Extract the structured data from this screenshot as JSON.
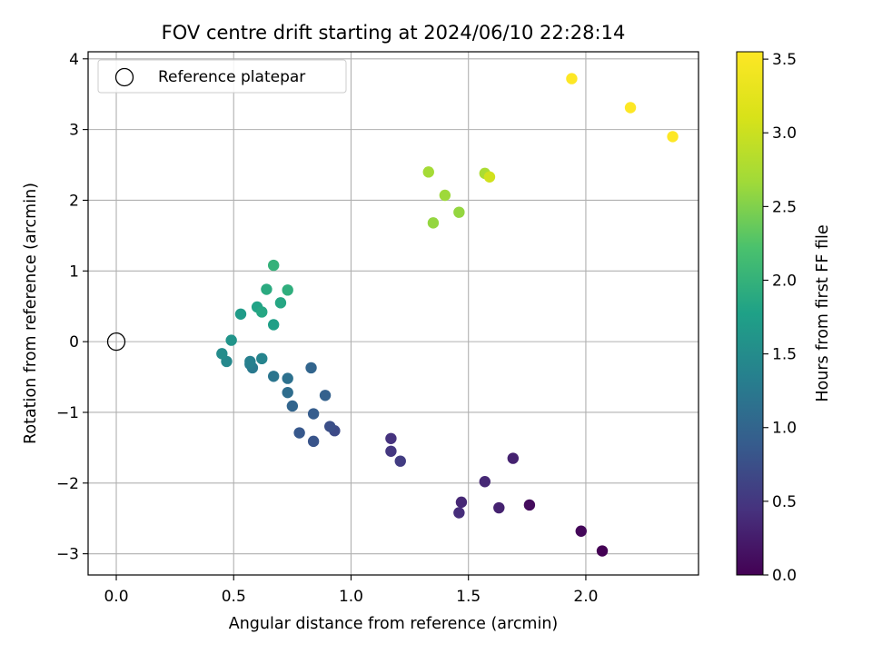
{
  "chart_data": {
    "type": "scatter",
    "title": "FOV centre drift starting at 2024/06/10 22:28:14",
    "xlabel": "Angular distance from reference (arcmin)",
    "ylabel": "Rotation from reference (arcmin)",
    "xlim": [
      -0.12,
      2.48
    ],
    "ylim": [
      -3.3,
      4.1
    ],
    "x_ticks": [
      0.0,
      0.5,
      1.0,
      1.5,
      2.0
    ],
    "x_tick_labels": [
      "0.0",
      "0.5",
      "1.0",
      "1.5",
      "2.0"
    ],
    "y_ticks": [
      -3,
      -2,
      -1,
      0,
      1,
      2,
      3,
      4
    ],
    "y_tick_labels": [
      "−3",
      "−2",
      "−1",
      "0",
      "1",
      "2",
      "3",
      "4"
    ],
    "grid": true,
    "legend": {
      "placement": "top-left",
      "entries": [
        {
          "label": "Reference platepar",
          "marker": "hollow-circle",
          "color": "#000000"
        }
      ]
    },
    "reference_point": {
      "x": 0.0,
      "y": 0.0
    },
    "colorbar": {
      "label": "Hours from first FF file",
      "colormap": "viridis",
      "range": [
        0.0,
        3.55
      ],
      "ticks": [
        0.0,
        0.5,
        1.0,
        1.5,
        2.0,
        2.5,
        3.0,
        3.5
      ],
      "tick_labels": [
        "0.0",
        "0.5",
        "1.0",
        "1.5",
        "2.0",
        "2.5",
        "3.0",
        "3.5"
      ]
    },
    "points": [
      {
        "x": 2.07,
        "y": -2.96,
        "hours": 0.0
      },
      {
        "x": 1.98,
        "y": -2.68,
        "hours": 0.05
      },
      {
        "x": 1.76,
        "y": -2.31,
        "hours": 0.1
      },
      {
        "x": 1.63,
        "y": -2.35,
        "hours": 0.3
      },
      {
        "x": 1.69,
        "y": -1.65,
        "hours": 0.3
      },
      {
        "x": 1.57,
        "y": -1.98,
        "hours": 0.35
      },
      {
        "x": 1.47,
        "y": -2.27,
        "hours": 0.35
      },
      {
        "x": 1.46,
        "y": -2.42,
        "hours": 0.4
      },
      {
        "x": 1.17,
        "y": -1.37,
        "hours": 0.45
      },
      {
        "x": 1.17,
        "y": -1.55,
        "hours": 0.5
      },
      {
        "x": 1.21,
        "y": -1.69,
        "hours": 0.55
      },
      {
        "x": 0.93,
        "y": -1.26,
        "hours": 0.7
      },
      {
        "x": 0.91,
        "y": -1.2,
        "hours": 0.75
      },
      {
        "x": 0.84,
        "y": -1.41,
        "hours": 0.8
      },
      {
        "x": 0.78,
        "y": -1.29,
        "hours": 0.85
      },
      {
        "x": 0.84,
        "y": -1.02,
        "hours": 0.9
      },
      {
        "x": 0.89,
        "y": -0.76,
        "hours": 0.95
      },
      {
        "x": 0.83,
        "y": -0.37,
        "hours": 1.0
      },
      {
        "x": 0.75,
        "y": -0.91,
        "hours": 1.0
      },
      {
        "x": 0.73,
        "y": -0.72,
        "hours": 1.1
      },
      {
        "x": 0.73,
        "y": -0.52,
        "hours": 1.15
      },
      {
        "x": 0.67,
        "y": -0.49,
        "hours": 1.2
      },
      {
        "x": 0.58,
        "y": -0.37,
        "hours": 1.25
      },
      {
        "x": 0.57,
        "y": -0.32,
        "hours": 1.3
      },
      {
        "x": 0.57,
        "y": -0.28,
        "hours": 1.35
      },
      {
        "x": 0.62,
        "y": -0.24,
        "hours": 1.4
      },
      {
        "x": 0.47,
        "y": -0.28,
        "hours": 1.45
      },
      {
        "x": 0.45,
        "y": -0.17,
        "hours": 1.5
      },
      {
        "x": 0.49,
        "y": 0.02,
        "hours": 1.6
      },
      {
        "x": 0.53,
        "y": 0.39,
        "hours": 1.7
      },
      {
        "x": 0.67,
        "y": 0.24,
        "hours": 1.75
      },
      {
        "x": 0.6,
        "y": 0.49,
        "hours": 1.8
      },
      {
        "x": 0.62,
        "y": 0.42,
        "hours": 1.85
      },
      {
        "x": 0.7,
        "y": 0.55,
        "hours": 1.85
      },
      {
        "x": 0.64,
        "y": 0.74,
        "hours": 1.9
      },
      {
        "x": 0.73,
        "y": 0.73,
        "hours": 1.95
      },
      {
        "x": 0.67,
        "y": 1.08,
        "hours": 2.0
      },
      {
        "x": 1.35,
        "y": 1.68,
        "hours": 2.6
      },
      {
        "x": 1.46,
        "y": 1.83,
        "hours": 2.6
      },
      {
        "x": 1.4,
        "y": 2.07,
        "hours": 2.65
      },
      {
        "x": 1.33,
        "y": 2.4,
        "hours": 2.7
      },
      {
        "x": 1.57,
        "y": 2.38,
        "hours": 2.75
      },
      {
        "x": 1.59,
        "y": 2.33,
        "hours": 3.05
      },
      {
        "x": 1.94,
        "y": 3.72,
        "hours": 3.55
      },
      {
        "x": 2.19,
        "y": 3.31,
        "hours": 3.55
      },
      {
        "x": 2.37,
        "y": 2.9,
        "hours": 3.55
      }
    ]
  }
}
